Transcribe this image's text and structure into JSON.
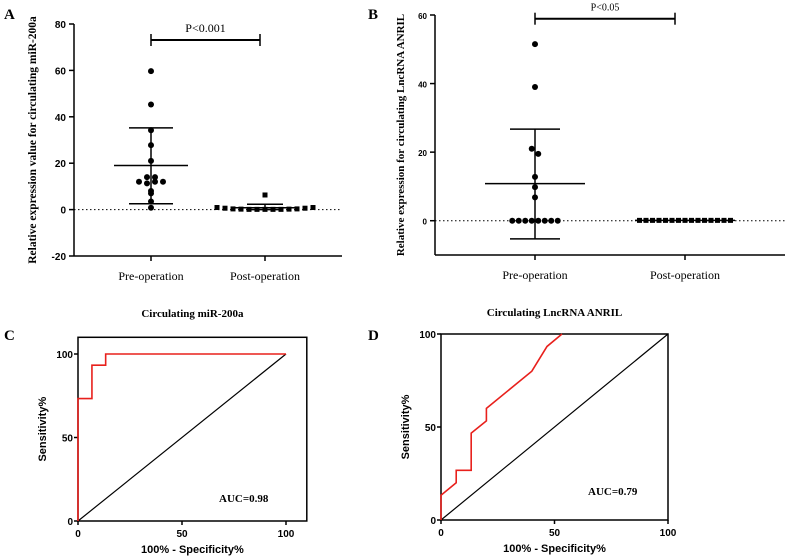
{
  "chart_data": [
    {
      "panel": "A",
      "type": "scatter",
      "ylabel": "Relative expression value for circulating miR-200a",
      "categories": [
        "Pre-operation",
        "Post-operation"
      ],
      "ylim": [
        -20,
        80
      ],
      "yticks": [
        -20,
        0,
        20,
        40,
        60,
        80
      ],
      "annotation": "P<0.001",
      "series": [
        {
          "name": "Pre-operation",
          "marker": "circle",
          "mean": 19,
          "sd_upper": 35.2,
          "sd_lower": 2.5,
          "values": [
            59.7,
            45.3,
            34.2,
            27.8,
            21,
            14,
            12,
            11.3,
            12,
            12,
            14,
            8,
            7,
            3.5,
            0.8
          ]
        },
        {
          "name": "Post-operation",
          "marker": "square",
          "mean": 0.8,
          "sd_upper": 2.3,
          "sd_lower": 0,
          "values": [
            6.3,
            0.9,
            0.6,
            0.3,
            0.2,
            0.1,
            0.1,
            0.1,
            0.1,
            0.1,
            0.2,
            0.3,
            0.6,
            0.9
          ]
        }
      ]
    },
    {
      "panel": "B",
      "type": "scatter",
      "ylabel": "Relative expression for circulating LncRNA ANRIL",
      "categories": [
        "Pre-operation",
        "Post-operation"
      ],
      "ylim": [
        -10,
        60
      ],
      "yticks": [
        0,
        20,
        40,
        60
      ],
      "annotation": "P<0.05",
      "series": [
        {
          "name": "Pre-operation",
          "marker": "circle",
          "mean": 10.8,
          "sd_upper": 26.7,
          "sd_lower": -5.3,
          "values": [
            51.5,
            39,
            21,
            19.5,
            12.8,
            9.8,
            6.8,
            0,
            0,
            0,
            0,
            0,
            0,
            0,
            0
          ]
        },
        {
          "name": "Post-operation",
          "marker": "square",
          "mean": 0.1,
          "sd_upper": 0.1,
          "sd_lower": 0.1,
          "values": [
            0.1,
            0.1,
            0.1,
            0.1,
            0.1,
            0.1,
            0.1,
            0.1,
            0.1,
            0.1,
            0.1,
            0.1,
            0.1,
            0.1,
            0.1
          ]
        }
      ]
    },
    {
      "panel": "C",
      "type": "line",
      "title": "Circulating miR-200a",
      "xlabel": "100% - Specificity%",
      "ylabel": "Sensitivity%",
      "xlim": [
        0,
        110
      ],
      "ylim": [
        0,
        110
      ],
      "xticks": [
        0,
        50,
        100
      ],
      "yticks": [
        0,
        50,
        100
      ],
      "annotation": "AUC=0.98",
      "roc_color": "#e8201c",
      "roc": [
        [
          0,
          0
        ],
        [
          0,
          73.3
        ],
        [
          6.7,
          73.3
        ],
        [
          6.7,
          93.3
        ],
        [
          13.3,
          93.3
        ],
        [
          13.3,
          100
        ],
        [
          100,
          100
        ]
      ],
      "reference": [
        [
          0,
          0
        ],
        [
          100,
          100
        ]
      ]
    },
    {
      "panel": "D",
      "type": "line",
      "title": "Circulating LncRNA ANRIL",
      "xlabel": "100% - Specificity%",
      "ylabel": "Sensitivity%",
      "xlim": [
        0,
        100
      ],
      "ylim": [
        0,
        100
      ],
      "xticks": [
        0,
        50,
        100
      ],
      "yticks": [
        0,
        50,
        100
      ],
      "annotation": "AUC=0.79",
      "roc_color": "#e8201c",
      "roc": [
        [
          0,
          0
        ],
        [
          0,
          13.3
        ],
        [
          6.7,
          20
        ],
        [
          6.7,
          26.7
        ],
        [
          13.3,
          26.7
        ],
        [
          13.3,
          46.7
        ],
        [
          20,
          53.3
        ],
        [
          20,
          60
        ],
        [
          40,
          80
        ],
        [
          46.7,
          93.3
        ],
        [
          53.3,
          100
        ]
      ],
      "reference": [
        [
          0,
          0
        ],
        [
          100,
          100
        ]
      ]
    }
  ]
}
